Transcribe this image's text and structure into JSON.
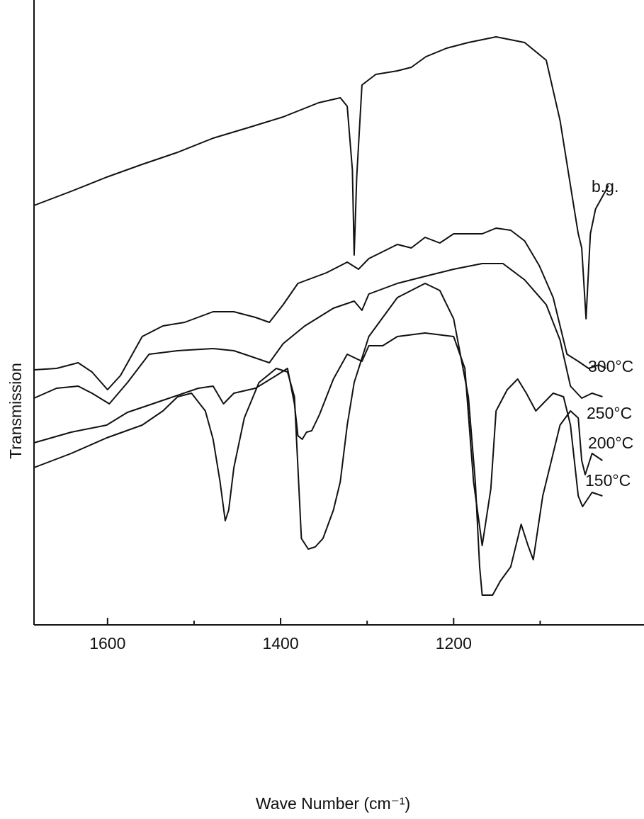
{
  "chart_data": {
    "type": "line",
    "x_label": "Wave Number (cm⁻¹)",
    "y_label": "Transmission",
    "xlim": [
      1685,
      980
    ],
    "xticks": [
      1600,
      1400,
      1200
    ],
    "x_minor_ticks": [
      1500,
      1300,
      1100
    ],
    "ylim": [
      0,
      882
    ],
    "series": [
      {
        "name": "b.g.",
        "color": "#111111",
        "x": [
          1685,
          1642,
          1601,
          1560,
          1519,
          1478,
          1437,
          1397,
          1356,
          1331,
          1323,
          1317,
          1315,
          1312,
          1306,
          1290,
          1265,
          1249,
          1232,
          1208,
          1183,
          1151,
          1118,
          1093,
          1077,
          1060,
          1056,
          1052,
          1047,
          1042,
          1036,
          1021
        ],
        "values": [
          592,
          612,
          632,
          650,
          667,
          687,
          702,
          717,
          737,
          744,
          732,
          642,
          522,
          632,
          762,
          777,
          782,
          787,
          802,
          814,
          822,
          830,
          822,
          797,
          712,
          582,
          552,
          532,
          432,
          552,
          587,
          620
        ]
      },
      {
        "name": "300°C",
        "color": "#111111",
        "x": [
          1685,
          1659,
          1634,
          1618,
          1600,
          1585,
          1560,
          1536,
          1511,
          1478,
          1454,
          1429,
          1413,
          1397,
          1380,
          1347,
          1323,
          1310,
          1298,
          1265,
          1249,
          1233,
          1216,
          1200,
          1183,
          1167,
          1151,
          1134,
          1118,
          1101,
          1085,
          1069,
          1056,
          1044,
          1032,
          1024
        ],
        "values": [
          360,
          362,
          370,
          357,
          332,
          352,
          407,
          422,
          427,
          442,
          442,
          434,
          427,
          452,
          482,
          497,
          512,
          502,
          517,
          537,
          532,
          547,
          539,
          552,
          552,
          552,
          560,
          557,
          542,
          507,
          462,
          382,
          372,
          362,
          367,
          362
        ]
      },
      {
        "name": "250°C",
        "color": "#111111",
        "x": [
          1685,
          1659,
          1634,
          1618,
          1598,
          1577,
          1552,
          1519,
          1478,
          1454,
          1437,
          1413,
          1397,
          1372,
          1339,
          1315,
          1306,
          1298,
          1265,
          1233,
          1200,
          1167,
          1143,
          1118,
          1093,
          1077,
          1065,
          1052,
          1040,
          1028
        ],
        "values": [
          320,
          334,
          337,
          327,
          312,
          342,
          382,
          387,
          390,
          387,
          380,
          370,
          397,
          422,
          447,
          457,
          444,
          467,
          482,
          492,
          502,
          510,
          510,
          487,
          452,
          402,
          337,
          320,
          327,
          322
        ]
      },
      {
        "name": "200°C",
        "color": "#111111",
        "x": [
          1685,
          1642,
          1601,
          1577,
          1560,
          1536,
          1495,
          1478,
          1466,
          1454,
          1429,
          1405,
          1392,
          1384,
          1380,
          1375,
          1370,
          1364,
          1355,
          1339,
          1323,
          1306,
          1298,
          1282,
          1265,
          1233,
          1200,
          1187,
          1177,
          1167,
          1157,
          1151,
          1138,
          1126,
          1116,
          1105,
          1097,
          1085,
          1073,
          1065,
          1056,
          1051,
          1040,
          1028
        ],
        "values": [
          257,
          272,
          282,
          300,
          307,
          317,
          334,
          337,
          312,
          327,
          334,
          352,
          362,
          312,
          267,
          262,
          272,
          274,
          297,
          347,
          382,
          372,
          394,
          394,
          407,
          412,
          407,
          362,
          202,
          112,
          192,
          302,
          332,
          347,
          327,
          302,
          312,
          327,
          322,
          282,
          182,
          167,
          187,
          182
        ]
      },
      {
        "name": "150°C",
        "color": "#111111",
        "x": [
          1685,
          1642,
          1601,
          1560,
          1536,
          1519,
          1503,
          1487,
          1478,
          1470,
          1464,
          1460,
          1454,
          1442,
          1425,
          1405,
          1392,
          1384,
          1380,
          1376,
          1368,
          1360,
          1351,
          1339,
          1331,
          1323,
          1315,
          1298,
          1265,
          1233,
          1216,
          1200,
          1183,
          1175,
          1170,
          1167,
          1155,
          1146,
          1134,
          1122,
          1114,
          1108,
          1097,
          1077,
          1065,
          1056,
          1052,
          1048,
          1040,
          1028
        ],
        "values": [
          222,
          242,
          264,
          282,
          302,
          322,
          327,
          302,
          262,
          202,
          147,
          162,
          222,
          292,
          342,
          362,
          357,
          322,
          222,
          122,
          107,
          110,
          122,
          162,
          202,
          282,
          342,
          407,
          462,
          482,
          472,
          432,
          322,
          202,
          82,
          42,
          42,
          62,
          82,
          142,
          112,
          92,
          182,
          282,
          302,
          292,
          232,
          212,
          242,
          232
        ]
      }
    ]
  }
}
